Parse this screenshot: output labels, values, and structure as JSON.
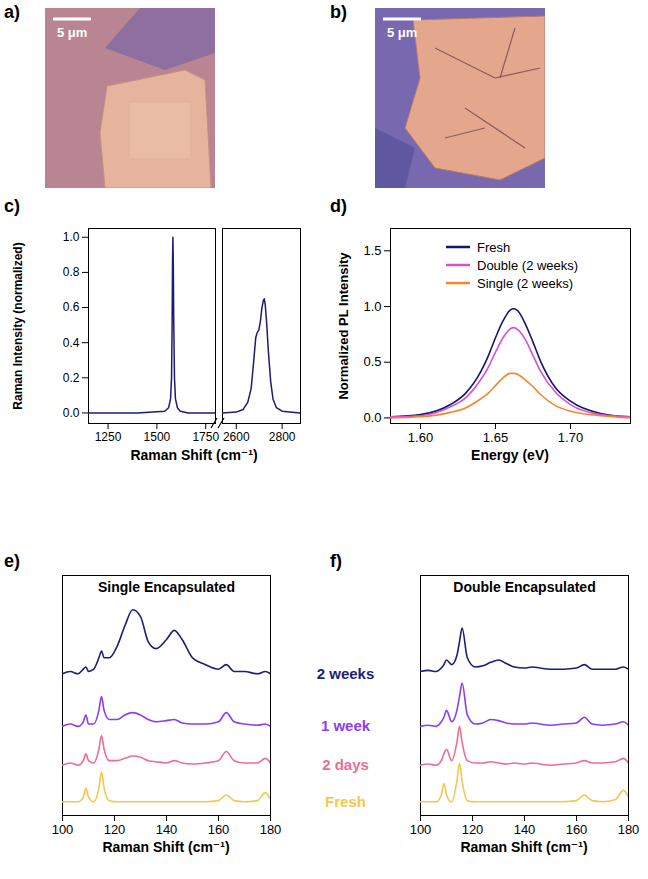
{
  "chart_data": [
    {
      "type": "image",
      "panel": "a)",
      "annotations": [
        "5 μm"
      ]
    },
    {
      "type": "image",
      "panel": "b)",
      "annotations": [
        "5 μm"
      ]
    },
    {
      "type": "line",
      "panel": "c)",
      "x_label": "Raman Shift (cm⁻¹)",
      "y_label": "Raman Intensity (normalized)",
      "color": "#1c1c74",
      "ylim": [
        -0.06,
        1.05
      ],
      "yticks": [
        {
          "value": 0,
          "label": "0.0"
        },
        0.2,
        0.4,
        0.6,
        0.8,
        {
          "value": 1,
          "label": "1.0"
        }
      ],
      "segments": [
        {
          "xlim": [
            1150,
            1800
          ],
          "xticks": [
            1250,
            1500,
            1750
          ],
          "x": [
            1150,
            1400,
            1540,
            1560,
            1570,
            1575,
            1578,
            1580,
            1582,
            1584,
            1586,
            1590,
            1595,
            1605,
            1620,
            1660,
            1800
          ],
          "values": [
            0,
            0,
            0.01,
            0.03,
            0.08,
            0.2,
            0.5,
            0.85,
            1.0,
            0.85,
            0.55,
            0.2,
            0.08,
            0.03,
            0.01,
            0,
            0
          ]
        },
        {
          "xlim": [
            2540,
            2880
          ],
          "xticks": [
            2600,
            2800
          ],
          "x": [
            2540,
            2600,
            2630,
            2650,
            2665,
            2675,
            2685,
            2692,
            2698,
            2705,
            2712,
            2718,
            2722,
            2726,
            2732,
            2740,
            2750,
            2760,
            2775,
            2800,
            2880
          ],
          "values": [
            0,
            0.005,
            0.02,
            0.06,
            0.14,
            0.28,
            0.43,
            0.46,
            0.47,
            0.52,
            0.6,
            0.64,
            0.65,
            0.62,
            0.52,
            0.35,
            0.18,
            0.08,
            0.03,
            0.01,
            0
          ]
        }
      ]
    },
    {
      "type": "line",
      "panel": "d)",
      "x_label": "Energy (eV)",
      "y_label": "Normalized PL Intensity",
      "legend": "top-left",
      "xlim": [
        1.58,
        1.74
      ],
      "xticks": [
        {
          "value": 1.6,
          "label": "1.60"
        },
        1.65,
        {
          "value": 1.7,
          "label": "1.70"
        }
      ],
      "ylim": [
        -0.05,
        1.7
      ],
      "yticks": [
        {
          "value": 0,
          "label": "0.0"
        },
        0.5,
        {
          "value": 1,
          "label": "1.0"
        },
        1.5
      ],
      "x": [
        1.58,
        1.6,
        1.62,
        1.63,
        1.64,
        1.645,
        1.65,
        1.655,
        1.66,
        1.662,
        1.665,
        1.67,
        1.675,
        1.68,
        1.69,
        1.7,
        1.72,
        1.74
      ],
      "series": [
        {
          "name": "Fresh",
          "color": "#16166b",
          "values": [
            0.01,
            0.03,
            0.12,
            0.22,
            0.41,
            0.55,
            0.72,
            0.87,
            0.97,
            0.98,
            0.96,
            0.84,
            0.68,
            0.51,
            0.27,
            0.15,
            0.04,
            0.01
          ]
        },
        {
          "name": "Double (2 weeks)",
          "color": "#d64fd6",
          "values": [
            0.01,
            0.02,
            0.1,
            0.18,
            0.34,
            0.45,
            0.59,
            0.72,
            0.8,
            0.81,
            0.79,
            0.7,
            0.56,
            0.42,
            0.23,
            0.12,
            0.03,
            0.01
          ]
        },
        {
          "name": "Single (2 weeks)",
          "color": "#f7862a",
          "values": [
            0,
            0.01,
            0.05,
            0.09,
            0.17,
            0.22,
            0.29,
            0.36,
            0.4,
            0.4,
            0.39,
            0.34,
            0.28,
            0.21,
            0.11,
            0.06,
            0.02,
            0
          ]
        }
      ]
    },
    {
      "type": "line",
      "panel": "e)",
      "title": "Single Encapsulated",
      "x_label": "Raman Shift (cm⁻¹)",
      "tick_labels": "x",
      "xlim": [
        100,
        180
      ],
      "xticks": [
        100,
        120,
        140,
        160,
        180
      ],
      "ylim": [
        0,
        10.5
      ],
      "x": [
        100,
        103,
        106,
        108,
        109,
        110,
        112,
        114,
        115,
        116,
        118,
        121,
        124,
        127,
        130,
        133,
        136,
        140,
        143,
        146,
        150,
        155,
        160,
        163,
        166,
        170,
        175,
        178,
        180
      ],
      "series": [
        {
          "name": "Fresh",
          "color": "#f4c74d",
          "values": [
            0.6,
            0.6,
            0.6,
            0.8,
            1.2,
            0.8,
            0.6,
            1.2,
            1.9,
            1.2,
            0.65,
            0.6,
            0.6,
            0.6,
            0.6,
            0.6,
            0.6,
            0.6,
            0.6,
            0.6,
            0.6,
            0.6,
            0.65,
            0.9,
            0.65,
            0.6,
            0.65,
            1.0,
            0.7
          ]
        },
        {
          "name": "2 days",
          "color": "#ec6e93",
          "values": [
            2.2,
            2.3,
            2.2,
            2.4,
            2.7,
            2.4,
            2.3,
            2.9,
            3.5,
            2.9,
            2.4,
            2.4,
            2.5,
            2.6,
            2.55,
            2.4,
            2.35,
            2.3,
            2.4,
            2.3,
            2.25,
            2.3,
            2.4,
            2.8,
            2.4,
            2.3,
            2.3,
            2.5,
            2.3
          ]
        },
        {
          "name": "1 week",
          "color": "#8a3df5",
          "values": [
            3.9,
            4.0,
            3.9,
            4.1,
            4.4,
            4.0,
            4.0,
            4.6,
            5.2,
            4.6,
            4.2,
            4.2,
            4.4,
            4.5,
            4.4,
            4.2,
            4.1,
            4.15,
            4.2,
            4.05,
            4.0,
            4.0,
            4.1,
            4.5,
            4.1,
            4.0,
            3.95,
            4.0,
            3.9
          ]
        },
        {
          "name": "2 weeks",
          "color": "#1b1f78",
          "values": [
            6.2,
            6.3,
            6.2,
            6.4,
            6.5,
            6.3,
            6.4,
            6.9,
            7.2,
            6.9,
            6.9,
            7.4,
            8.3,
            9.0,
            8.7,
            7.6,
            7.3,
            7.7,
            8.1,
            7.7,
            6.9,
            6.6,
            6.4,
            6.6,
            6.3,
            6.3,
            6.2,
            6.3,
            6.2
          ]
        }
      ]
    },
    {
      "type": "line",
      "panel": "f)",
      "title": "Double Encapsulated",
      "x_label": "Raman Shift (cm⁻¹)",
      "tick_labels": "x",
      "xlim": [
        100,
        180
      ],
      "xticks": [
        100,
        120,
        140,
        160,
        180
      ],
      "ylim": [
        0,
        10.5
      ],
      "x": [
        100,
        103,
        106,
        108,
        109,
        110,
        112,
        114,
        115,
        116,
        118,
        121,
        124,
        127,
        130,
        133,
        136,
        140,
        143,
        146,
        150,
        155,
        160,
        163,
        166,
        170,
        175,
        178,
        180
      ],
      "series": [
        {
          "color": "#f4c74d",
          "values": [
            0.6,
            0.6,
            0.6,
            0.9,
            1.4,
            0.9,
            0.6,
            1.5,
            2.3,
            1.5,
            0.65,
            0.6,
            0.6,
            0.6,
            0.6,
            0.6,
            0.6,
            0.6,
            0.6,
            0.6,
            0.6,
            0.6,
            0.65,
            0.9,
            0.65,
            0.6,
            0.7,
            1.1,
            0.8
          ]
        },
        {
          "color": "#ec6e93",
          "values": [
            2.2,
            2.25,
            2.2,
            2.4,
            2.7,
            2.9,
            2.4,
            3.2,
            3.9,
            3.2,
            2.4,
            2.3,
            2.3,
            2.35,
            2.3,
            2.25,
            2.3,
            2.25,
            2.3,
            2.25,
            2.2,
            2.25,
            2.3,
            2.4,
            2.3,
            2.3,
            2.35,
            2.5,
            2.3
          ]
        },
        {
          "color": "#8a3df5",
          "values": [
            3.9,
            3.95,
            3.9,
            4.1,
            4.3,
            4.6,
            4.1,
            4.6,
            5.2,
            5.8,
            4.4,
            4.0,
            4.05,
            4.2,
            4.15,
            4.05,
            4.0,
            4.0,
            4.05,
            4.0,
            3.95,
            4.0,
            4.05,
            4.3,
            4.0,
            3.95,
            4.0,
            4.1,
            3.95
          ]
        },
        {
          "color": "#1b1f78",
          "values": [
            6.3,
            6.35,
            6.3,
            6.45,
            6.6,
            6.8,
            6.6,
            7.0,
            7.6,
            8.2,
            6.9,
            6.5,
            6.55,
            6.7,
            6.8,
            6.65,
            6.5,
            6.45,
            6.5,
            6.45,
            6.4,
            6.4,
            6.45,
            6.6,
            6.4,
            6.4,
            6.4,
            6.5,
            6.4
          ]
        }
      ]
    }
  ]
}
